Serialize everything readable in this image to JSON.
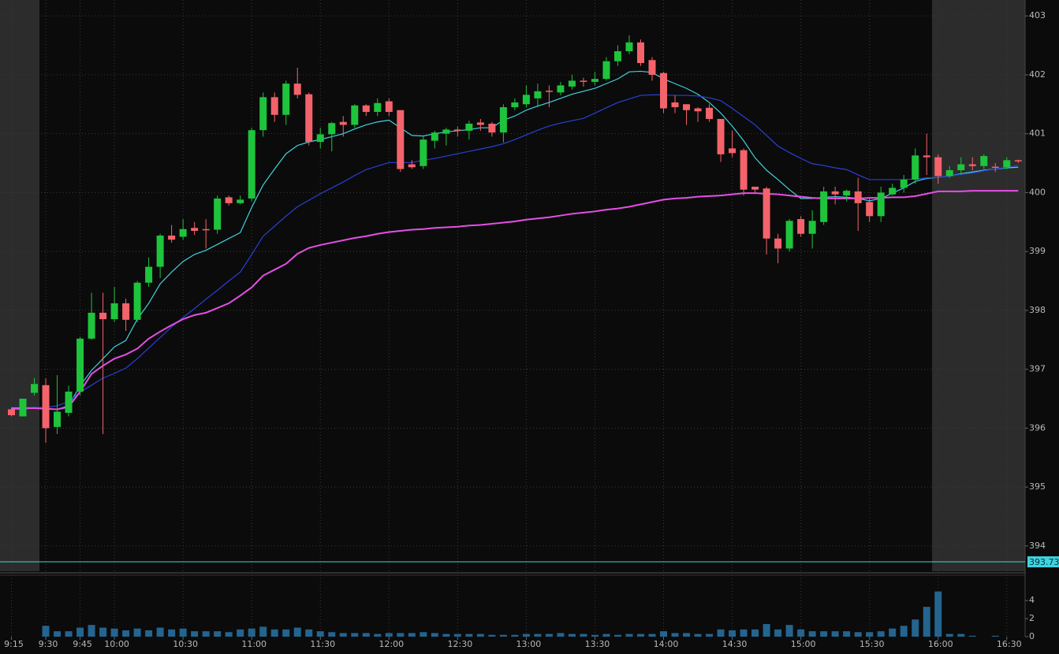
{
  "chart_data": {
    "type": "candlestick",
    "x": [
      "9:15",
      "9:20",
      "9:25",
      "9:30",
      "9:35",
      "9:40",
      "9:45",
      "9:50",
      "9:55",
      "10:00",
      "10:05",
      "10:10",
      "10:15",
      "10:20",
      "10:25",
      "10:30",
      "10:35",
      "10:40",
      "10:45",
      "10:50",
      "10:55",
      "11:00",
      "11:05",
      "11:10",
      "11:15",
      "11:20",
      "11:25",
      "11:30",
      "11:35",
      "11:40",
      "11:45",
      "11:50",
      "11:55",
      "12:00",
      "12:05",
      "12:10",
      "12:15",
      "12:20",
      "12:25",
      "12:30",
      "12:35",
      "12:40",
      "12:45",
      "12:50",
      "12:55",
      "13:00",
      "13:05",
      "13:10",
      "13:15",
      "13:20",
      "13:25",
      "13:30",
      "13:35",
      "13:40",
      "13:45",
      "13:50",
      "13:55",
      "14:00",
      "14:05",
      "14:10",
      "14:15",
      "14:20",
      "14:25",
      "14:30",
      "14:35",
      "14:40",
      "14:45",
      "14:50",
      "14:55",
      "15:00",
      "15:05",
      "15:10",
      "15:15",
      "15:20",
      "15:25",
      "15:30",
      "15:35",
      "15:40",
      "15:45",
      "15:50",
      "15:55",
      "16:00",
      "16:05",
      "16:10",
      "16:15",
      "16:20",
      "16:25",
      "16:30",
      "16:35"
    ],
    "open": [
      396.32,
      396.2,
      396.6,
      396.73,
      396.02,
      396.26,
      396.62,
      397.52,
      397.96,
      397.85,
      398.12,
      397.84,
      398.47,
      398.74,
      399.27,
      399.25,
      399.4,
      399.38,
      399.37,
      399.92,
      399.82,
      399.9,
      401.06,
      401.62,
      401.32,
      401.85,
      401.67,
      400.86,
      400.99,
      401.2,
      401.15,
      401.48,
      401.37,
      401.55,
      401.4,
      400.48,
      400.45,
      400.88,
      401.0,
      401.07,
      401.05,
      401.19,
      401.17,
      401.02,
      401.45,
      401.5,
      401.6,
      401.73,
      401.7,
      401.8,
      401.9,
      401.88,
      401.93,
      402.23,
      402.4,
      402.55,
      402.25,
      402.03,
      401.53,
      401.5,
      401.43,
      401.44,
      401.25,
      400.75,
      400.72,
      400.1,
      400.07,
      399.22,
      399.05,
      399.55,
      399.3,
      399.5,
      400.02,
      399.95,
      400.02,
      399.84,
      399.6,
      399.97,
      400.08,
      400.22,
      400.63,
      400.6,
      400.28,
      400.38,
      400.48,
      400.45,
      400.44,
      400.43,
      400.55
    ],
    "high": [
      396.35,
      396.5,
      396.85,
      396.85,
      396.9,
      396.72,
      397.55,
      398.3,
      398.3,
      398.4,
      398.2,
      398.5,
      398.9,
      399.3,
      399.45,
      399.55,
      399.5,
      399.55,
      399.95,
      399.95,
      399.95,
      401.1,
      401.7,
      401.7,
      401.9,
      402.12,
      401.7,
      401.1,
      401.2,
      401.3,
      401.5,
      401.5,
      401.6,
      401.6,
      401.4,
      400.55,
      400.95,
      401.05,
      401.1,
      401.12,
      401.22,
      401.25,
      401.2,
      401.5,
      401.6,
      401.82,
      401.85,
      401.82,
      401.88,
      402.0,
      401.95,
      402.05,
      402.3,
      402.5,
      402.67,
      402.6,
      402.3,
      402.05,
      401.65,
      401.5,
      401.45,
      401.5,
      401.25,
      401.05,
      400.75,
      400.1,
      400.1,
      399.3,
      399.55,
      399.6,
      399.7,
      400.1,
      400.1,
      400.05,
      400.25,
      399.9,
      400.1,
      400.15,
      400.3,
      400.75,
      401.0,
      400.65,
      400.45,
      400.6,
      400.6,
      400.65,
      400.5,
      400.6,
      400.56
    ],
    "low": [
      396.2,
      396.2,
      396.55,
      395.75,
      395.9,
      396.2,
      396.55,
      397.5,
      395.9,
      397.8,
      397.65,
      397.8,
      398.4,
      398.55,
      399.15,
      399.2,
      399.28,
      399.05,
      399.3,
      399.78,
      399.8,
      399.85,
      400.95,
      401.2,
      401.15,
      401.6,
      400.8,
      400.75,
      400.7,
      400.95,
      401.1,
      401.3,
      401.3,
      401.3,
      400.35,
      400.4,
      400.4,
      400.75,
      400.8,
      400.95,
      400.9,
      401.05,
      400.95,
      400.85,
      401.4,
      401.45,
      401.45,
      401.45,
      401.65,
      401.75,
      401.8,
      401.82,
      401.9,
      402.15,
      402.35,
      402.15,
      401.9,
      401.35,
      401.35,
      401.15,
      401.2,
      401.2,
      400.52,
      400.6,
      399.95,
      399.98,
      398.95,
      398.8,
      399.0,
      399.25,
      399.05,
      399.45,
      399.8,
      399.85,
      399.35,
      399.5,
      399.5,
      399.95,
      400.0,
      400.15,
      400.3,
      400.15,
      400.25,
      400.3,
      400.38,
      400.4,
      400.35,
      400.4,
      400.5
    ],
    "close": [
      396.22,
      396.5,
      396.75,
      396.0,
      396.28,
      396.62,
      397.52,
      397.96,
      397.85,
      398.12,
      397.84,
      398.47,
      398.74,
      399.27,
      399.2,
      399.38,
      399.35,
      399.36,
      399.9,
      399.82,
      399.88,
      401.06,
      401.62,
      401.32,
      401.85,
      401.66,
      400.86,
      400.99,
      401.18,
      401.15,
      401.48,
      401.37,
      401.52,
      401.37,
      400.4,
      400.43,
      400.9,
      401.02,
      401.07,
      401.05,
      401.17,
      401.15,
      401.02,
      401.45,
      401.53,
      401.66,
      401.72,
      401.71,
      401.82,
      401.9,
      401.88,
      401.93,
      402.23,
      402.4,
      402.55,
      402.2,
      402.0,
      401.43,
      401.45,
      401.4,
      401.38,
      401.25,
      400.65,
      400.67,
      400.05,
      400.05,
      399.22,
      399.05,
      399.52,
      399.3,
      399.52,
      400.02,
      399.97,
      400.03,
      399.82,
      399.6,
      400.0,
      400.08,
      400.22,
      400.63,
      400.6,
      400.28,
      400.38,
      400.48,
      400.45,
      400.62,
      400.42,
      400.55,
      400.53
    ],
    "up_color": "#1ec43c",
    "down_color": "#f4636b",
    "overlays": [
      {
        "color": "#3ed3df",
        "values": [
          396.33,
          396.32,
          396.35,
          396.33,
          396.32,
          396.38,
          396.72,
          396.98,
          397.18,
          397.38,
          397.49,
          397.85,
          398.12,
          398.45,
          398.65,
          398.83,
          398.95,
          399.02,
          399.12,
          399.22,
          399.32,
          399.75,
          400.13,
          400.4,
          400.66,
          400.8,
          400.86,
          400.9,
          400.95,
          401.0,
          401.08,
          401.15,
          401.2,
          401.23,
          401.1,
          400.97,
          400.96,
          401.0,
          401.03,
          401.05,
          401.07,
          401.1,
          401.1,
          401.23,
          401.3,
          401.4,
          401.47,
          401.53,
          401.6,
          401.67,
          401.72,
          401.77,
          401.85,
          401.93,
          402.05,
          402.06,
          402.04,
          401.93,
          401.85,
          401.77,
          401.67,
          401.53,
          401.35,
          401.13,
          400.88,
          400.59,
          400.38,
          400.22,
          400.05,
          399.9,
          399.9,
          399.92,
          399.93,
          399.92,
          399.9,
          399.86,
          399.9,
          399.99,
          400.08,
          400.19,
          400.24,
          400.26,
          400.28,
          400.32,
          400.35,
          400.38,
          400.4,
          400.42,
          400.43
        ]
      },
      {
        "color": "#2a40d8",
        "values": [
          396.35,
          396.35,
          396.35,
          396.35,
          396.38,
          396.45,
          396.61,
          396.73,
          396.85,
          396.93,
          397.02,
          397.18,
          397.36,
          397.54,
          397.72,
          397.88,
          398.03,
          398.19,
          398.34,
          398.5,
          398.65,
          398.95,
          399.26,
          399.43,
          399.6,
          399.76,
          399.87,
          399.98,
          400.08,
          400.18,
          400.29,
          400.39,
          400.45,
          400.51,
          400.51,
          400.51,
          400.55,
          400.58,
          400.62,
          400.66,
          400.7,
          400.74,
          400.78,
          400.83,
          400.9,
          400.98,
          401.06,
          401.13,
          401.18,
          401.22,
          401.26,
          401.35,
          401.44,
          401.53,
          401.59,
          401.65,
          401.66,
          401.66,
          401.65,
          401.65,
          401.64,
          401.61,
          401.56,
          401.43,
          401.29,
          401.15,
          400.97,
          400.79,
          400.68,
          400.58,
          400.49,
          400.46,
          400.42,
          400.39,
          400.3,
          400.22,
          400.22,
          400.22,
          400.22,
          400.23,
          400.25,
          400.26,
          400.28,
          400.31,
          400.33,
          400.37,
          400.4,
          400.43,
          400.46
        ]
      },
      {
        "color": "#e64fe6",
        "values": [
          396.34,
          396.34,
          396.34,
          396.33,
          396.32,
          396.36,
          396.62,
          396.92,
          397.06,
          397.18,
          397.25,
          397.35,
          397.52,
          397.64,
          397.75,
          397.85,
          397.92,
          397.96,
          398.04,
          398.12,
          398.25,
          398.39,
          398.59,
          398.69,
          398.79,
          398.96,
          399.06,
          399.11,
          399.15,
          399.19,
          399.23,
          399.26,
          399.3,
          399.33,
          399.35,
          399.37,
          399.38,
          399.4,
          399.41,
          399.42,
          399.44,
          399.45,
          399.47,
          399.49,
          399.51,
          399.54,
          399.56,
          399.58,
          399.61,
          399.64,
          399.66,
          399.68,
          399.71,
          399.73,
          399.76,
          399.8,
          399.84,
          399.88,
          399.9,
          399.91,
          399.93,
          399.94,
          399.95,
          399.97,
          399.99,
          399.99,
          399.98,
          399.97,
          399.95,
          399.93,
          399.91,
          399.9,
          399.9,
          399.9,
          399.9,
          399.91,
          399.91,
          399.92,
          399.92,
          399.94,
          399.98,
          400.02,
          400.02,
          400.02,
          400.03,
          400.03,
          400.03,
          400.03,
          400.03
        ]
      }
    ],
    "price_line": {
      "value": 393.73,
      "color": "#3ed3df"
    },
    "xlim": [
      "9:10",
      "16:38"
    ],
    "xticks": [
      "9:15",
      "9:30",
      "9:45",
      "10:00",
      "10:30",
      "11:00",
      "11:30",
      "12:00",
      "12:30",
      "13:00",
      "13:30",
      "14:00",
      "14:30",
      "15:00",
      "15:30",
      "16:00",
      "16:30"
    ],
    "ylim": [
      393.57,
      403.27
    ],
    "yticks": [
      394,
      395,
      396,
      397,
      398,
      399,
      400,
      401,
      402,
      403
    ],
    "grid": true,
    "volume": {
      "color": "#24648f",
      "values": [
        null,
        null,
        null,
        1.2,
        0.6,
        0.6,
        1.0,
        1.3,
        1.0,
        0.9,
        0.7,
        0.9,
        0.7,
        1.0,
        0.8,
        0.9,
        0.6,
        0.6,
        0.6,
        0.5,
        0.8,
        0.9,
        1.1,
        0.8,
        0.8,
        1.0,
        0.8,
        0.6,
        0.5,
        0.4,
        0.4,
        0.4,
        0.3,
        0.4,
        0.4,
        0.4,
        0.5,
        0.4,
        0.3,
        0.3,
        0.3,
        0.3,
        0.2,
        0.2,
        0.2,
        0.3,
        0.3,
        0.3,
        0.4,
        0.3,
        0.3,
        0.2,
        0.3,
        0.2,
        0.3,
        0.3,
        0.3,
        0.6,
        0.4,
        0.4,
        0.3,
        0.3,
        0.8,
        0.7,
        0.8,
        0.8,
        1.4,
        0.8,
        1.3,
        0.8,
        0.6,
        0.6,
        0.6,
        0.6,
        0.5,
        0.5,
        0.6,
        0.9,
        1.2,
        1.9,
        3.3,
        5.0,
        0.3,
        0.3,
        0.1,
        0,
        0.1,
        0,
        0
      ],
      "ylim": [
        0,
        6.8
      ],
      "yticks": [
        0,
        2,
        4
      ]
    }
  }
}
